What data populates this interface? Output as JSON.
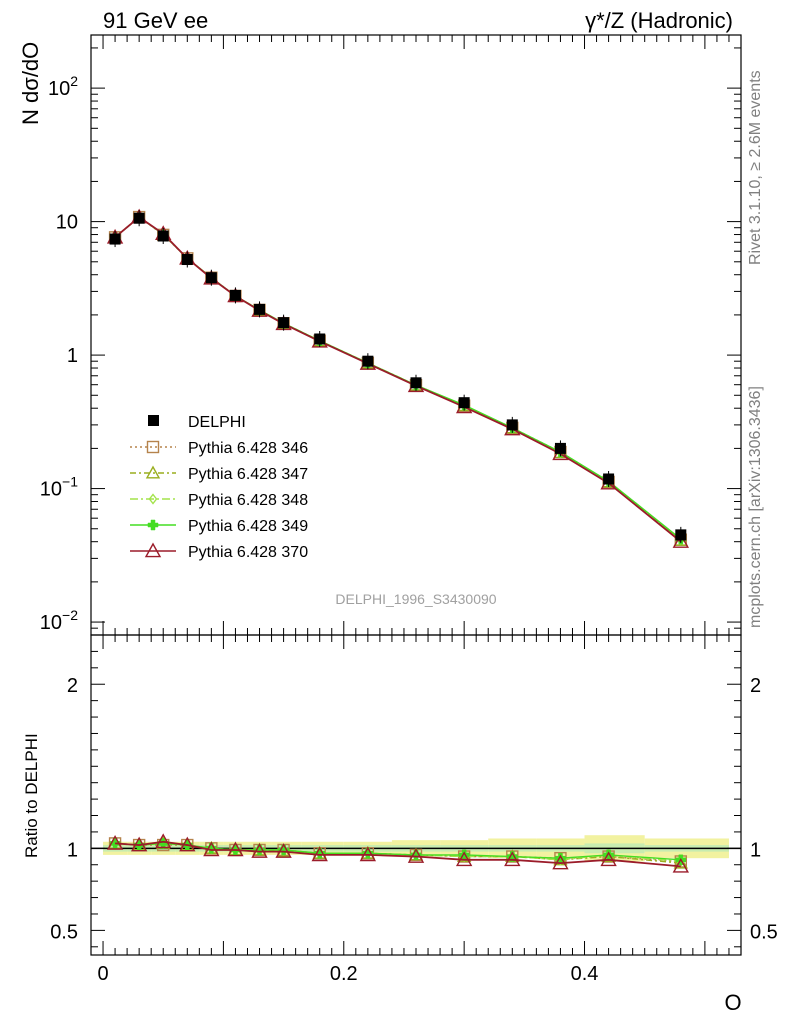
{
  "header": {
    "left": "91 GeV ee",
    "right": "γ*/Z (Hadronic)"
  },
  "side": {
    "rivet": "Rivet 3.1.10, ≥ 2.6M events",
    "mcplots": "mcplots.cern.ch [arXiv:1306.3436]"
  },
  "watermark": "DELPHI_1996_S3430090",
  "chart_data": {
    "type": "scatter",
    "xlabel": "O",
    "ylabel": "N dσ/dO",
    "ratio_ylabel": "Ratio to DELPHI",
    "x_ticks": [
      "0",
      "0.2",
      "0.4"
    ],
    "xlim": [
      -0.01,
      0.53
    ],
    "ylim": [
      0.008,
      250
    ],
    "y_log": true,
    "y_ticks": [
      "10^-2",
      "10^-1",
      "1",
      "10",
      "10^2"
    ],
    "ratio_ylim": [
      0.35,
      2.3
    ],
    "ratio_ticks": [
      "0.5",
      "1",
      "2"
    ],
    "legend_position": "middle-left",
    "x": [
      0.01,
      0.03,
      0.05,
      0.07,
      0.09,
      0.11,
      0.13,
      0.15,
      0.18,
      0.22,
      0.26,
      0.3,
      0.34,
      0.38,
      0.42,
      0.48
    ],
    "data": {
      "name": "DELPHI",
      "values": [
        7.4,
        10.6,
        7.8,
        5.2,
        3.8,
        2.8,
        2.2,
        1.75,
        1.32,
        0.9,
        0.62,
        0.44,
        0.3,
        0.2,
        0.118,
        0.045
      ]
    },
    "series": [
      {
        "name": "Pythia 6.428 346",
        "color": "#b5834c",
        "marker": "square",
        "dash": "2,3",
        "ratio": [
          1.03,
          1.02,
          1.02,
          1.02,
          1.0,
          0.99,
          0.99,
          0.99,
          0.97,
          0.97,
          0.96,
          0.95,
          0.95,
          0.94,
          0.95,
          0.92
        ]
      },
      {
        "name": "Pythia 6.428 347",
        "color": "#9aae1f",
        "marker": "triangle",
        "dash": "6,3,2,3",
        "ratio": [
          1.03,
          1.02,
          1.03,
          1.02,
          1.0,
          0.99,
          0.99,
          0.98,
          0.97,
          0.97,
          0.96,
          0.95,
          0.95,
          0.93,
          0.95,
          0.91
        ]
      },
      {
        "name": "Pythia 6.428 348",
        "color": "#a3e34a",
        "marker": "diamond",
        "dash": "8,3,2,3",
        "ratio": [
          1.03,
          1.02,
          1.03,
          1.02,
          1.0,
          0.99,
          0.99,
          0.99,
          0.97,
          0.97,
          0.96,
          0.95,
          0.95,
          0.93,
          0.96,
          0.92
        ]
      },
      {
        "name": "Pythia 6.428 349",
        "color": "#44dd22",
        "marker": "cross",
        "dash": "",
        "ratio": [
          1.03,
          1.02,
          1.03,
          1.02,
          1.0,
          0.99,
          0.99,
          0.99,
          0.97,
          0.97,
          0.96,
          0.96,
          0.95,
          0.94,
          0.96,
          0.93
        ]
      },
      {
        "name": "Pythia 6.428 370",
        "color": "#9b1c2a",
        "marker": "triangle-open",
        "dash": "",
        "ratio": [
          1.03,
          1.02,
          1.04,
          1.02,
          0.99,
          0.99,
          0.98,
          0.98,
          0.96,
          0.96,
          0.95,
          0.93,
          0.93,
          0.91,
          0.93,
          0.89
        ]
      }
    ],
    "uncertainty_band": {
      "inner": [
        0.02,
        0.02,
        0.02,
        0.02,
        0.02,
        0.02,
        0.02,
        0.02,
        0.02,
        0.02,
        0.02,
        0.02,
        0.02,
        0.02,
        0.03,
        0.02
      ],
      "outer": [
        0.04,
        0.04,
        0.04,
        0.04,
        0.04,
        0.04,
        0.04,
        0.04,
        0.04,
        0.04,
        0.05,
        0.05,
        0.06,
        0.06,
        0.08,
        0.06
      ]
    }
  }
}
